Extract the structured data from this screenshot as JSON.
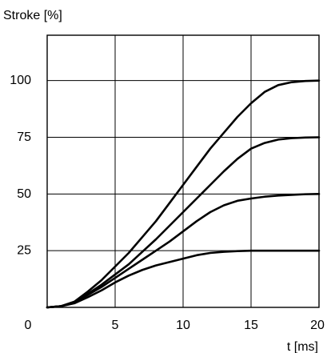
{
  "chart_data": {
    "type": "line",
    "ylabel": "Stroke [%]",
    "xlabel": "t [ms]",
    "xlim": [
      0,
      20
    ],
    "ylim": [
      0,
      120
    ],
    "x_ticks": [
      0,
      5,
      10,
      15,
      20
    ],
    "y_ticks": [
      25,
      50,
      75,
      100
    ],
    "grid": true,
    "line_color": "#000000",
    "series": [
      {
        "values": [
          [
            0,
            0
          ],
          [
            1,
            0.5
          ],
          [
            2,
            2.5
          ],
          [
            3,
            7
          ],
          [
            4,
            12
          ],
          [
            5,
            18
          ],
          [
            6,
            24
          ],
          [
            7,
            31
          ],
          [
            8,
            38
          ],
          [
            9,
            46
          ],
          [
            10,
            54
          ],
          [
            11,
            62
          ],
          [
            12,
            70
          ],
          [
            13,
            77
          ],
          [
            14,
            84
          ],
          [
            15,
            90
          ],
          [
            16,
            95
          ],
          [
            17,
            98
          ],
          [
            18,
            99.3
          ],
          [
            19,
            99.8
          ],
          [
            20,
            100
          ]
        ]
      },
      {
        "values": [
          [
            0,
            0
          ],
          [
            1,
            0.5
          ],
          [
            2,
            2.3
          ],
          [
            3,
            6
          ],
          [
            4,
            10
          ],
          [
            5,
            14.5
          ],
          [
            6,
            19
          ],
          [
            7,
            24.5
          ],
          [
            8,
            30
          ],
          [
            9,
            36
          ],
          [
            10,
            42
          ],
          [
            11,
            48
          ],
          [
            12,
            54
          ],
          [
            13,
            60
          ],
          [
            14,
            65.5
          ],
          [
            15,
            70
          ],
          [
            16,
            72.5
          ],
          [
            17,
            74
          ],
          [
            18,
            74.6
          ],
          [
            19,
            74.9
          ],
          [
            20,
            75
          ]
        ]
      },
      {
        "values": [
          [
            0,
            0
          ],
          [
            1,
            0.5
          ],
          [
            2,
            2.1
          ],
          [
            3,
            5.5
          ],
          [
            4,
            9
          ],
          [
            5,
            13
          ],
          [
            6,
            17
          ],
          [
            7,
            21
          ],
          [
            8,
            25
          ],
          [
            9,
            29
          ],
          [
            10,
            33.5
          ],
          [
            11,
            38
          ],
          [
            12,
            42
          ],
          [
            13,
            45
          ],
          [
            14,
            47
          ],
          [
            15,
            48
          ],
          [
            16,
            48.8
          ],
          [
            17,
            49.3
          ],
          [
            18,
            49.6
          ],
          [
            19,
            49.9
          ],
          [
            20,
            50
          ]
        ]
      },
      {
        "values": [
          [
            0,
            0
          ],
          [
            1,
            0.5
          ],
          [
            2,
            1.8
          ],
          [
            3,
            4.5
          ],
          [
            4,
            7.5
          ],
          [
            5,
            11
          ],
          [
            6,
            14
          ],
          [
            7,
            16.5
          ],
          [
            8,
            18.5
          ],
          [
            9,
            20
          ],
          [
            10,
            21.5
          ],
          [
            11,
            23
          ],
          [
            12,
            24
          ],
          [
            13,
            24.5
          ],
          [
            14,
            24.8
          ],
          [
            15,
            25
          ],
          [
            16,
            25
          ],
          [
            17,
            25
          ],
          [
            18,
            25
          ],
          [
            19,
            25
          ],
          [
            20,
            25
          ]
        ]
      }
    ]
  }
}
